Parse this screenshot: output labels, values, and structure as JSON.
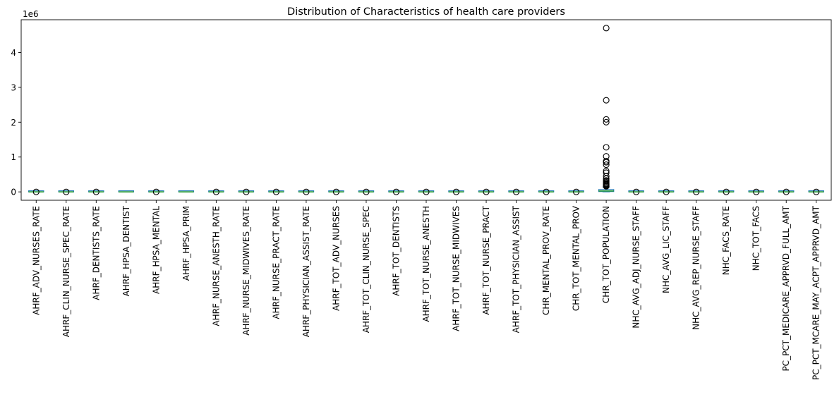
{
  "chart_data": {
    "type": "box",
    "title": "Distribution of Characteristics of health care providers",
    "xlabel": "",
    "ylabel": "",
    "y_scale_label": "1e6",
    "ylim": [
      -0.24,
      4.94
    ],
    "y_ticks": [
      0,
      1,
      2,
      3,
      4
    ],
    "y_tick_labels": [
      "0",
      "1",
      "2",
      "3",
      "4"
    ],
    "grid": false,
    "colors": {
      "box": "#1f77b4",
      "median": "#2ca02c",
      "flier": "#000000"
    },
    "categories": [
      "AHRF_ADV_NURSES_RATE",
      "AHRF_CLIN_NURSE_SPEC_RATE",
      "AHRF_DENTISTS_RATE",
      "AHRF_HPSA_DENTIST",
      "AHRF_HPSA_MENTAL",
      "AHRF_HPSA_PRIM",
      "AHRF_NURSE_ANESTH_RATE",
      "AHRF_NURSE_MIDWIVES_RATE",
      "AHRF_NURSE_PRACT_RATE",
      "AHRF_PHYSICIAN_ASSIST_RATE",
      "AHRF_TOT_ADV_NURSES",
      "AHRF_TOT_CLIN_NURSE_SPEC",
      "AHRF_TOT_DENTISTS",
      "AHRF_TOT_NURSE_ANESTH",
      "AHRF_TOT_NURSE_MIDWIVES",
      "AHRF_TOT_NURSE_PRACT",
      "AHRF_TOT_PHYSICIAN_ASSIST",
      "CHR_MENTAL_PROV_RATE",
      "CHR_TOT_MENTAL_PROV",
      "CHR_TOT_POPULATION",
      "NHC_AVG_ADJ_NURSE_STAFF",
      "NHC_AVG_LIC_STAFF",
      "NHC_AVG_REP_NURSE_STAFF",
      "NHC_FACS_RATE",
      "NHC_TOT_FACS",
      "PC_PCT_MEDICARE_APPRVD_FULL_AMT",
      "PC_PCT_MCARE_MAY_ACPT_APPRVD_AMT"
    ],
    "boxes": [
      {
        "q1": 0,
        "median": 0,
        "q3": 0,
        "whisker_low": 0,
        "whisker_high": 0,
        "has_fliers": true,
        "fliers": [
          0
        ]
      },
      {
        "q1": 0,
        "median": 0,
        "q3": 0,
        "whisker_low": 0,
        "whisker_high": 0,
        "has_fliers": true,
        "fliers": [
          0
        ]
      },
      {
        "q1": 0,
        "median": 0,
        "q3": 0,
        "whisker_low": 0,
        "whisker_high": 0,
        "has_fliers": true,
        "fliers": [
          0
        ]
      },
      {
        "q1": 0,
        "median": 0,
        "q3": 0,
        "whisker_low": 0,
        "whisker_high": 0,
        "has_fliers": false,
        "fliers": []
      },
      {
        "q1": 0,
        "median": 0,
        "q3": 0,
        "whisker_low": 0,
        "whisker_high": 0,
        "has_fliers": true,
        "fliers": [
          0
        ]
      },
      {
        "q1": 0,
        "median": 0,
        "q3": 0,
        "whisker_low": 0,
        "whisker_high": 0,
        "has_fliers": false,
        "fliers": []
      },
      {
        "q1": 0,
        "median": 0,
        "q3": 0,
        "whisker_low": 0,
        "whisker_high": 0,
        "has_fliers": true,
        "fliers": [
          0
        ]
      },
      {
        "q1": 0,
        "median": 0,
        "q3": 0,
        "whisker_low": 0,
        "whisker_high": 0,
        "has_fliers": true,
        "fliers": [
          0
        ]
      },
      {
        "q1": 0,
        "median": 0,
        "q3": 0,
        "whisker_low": 0,
        "whisker_high": 0,
        "has_fliers": true,
        "fliers": [
          0
        ]
      },
      {
        "q1": 0,
        "median": 0,
        "q3": 0,
        "whisker_low": 0,
        "whisker_high": 0,
        "has_fliers": true,
        "fliers": [
          0
        ]
      },
      {
        "q1": 0,
        "median": 0,
        "q3": 0,
        "whisker_low": 0,
        "whisker_high": 0,
        "has_fliers": true,
        "fliers": [
          0
        ]
      },
      {
        "q1": 0,
        "median": 0,
        "q3": 0,
        "whisker_low": 0,
        "whisker_high": 0,
        "has_fliers": true,
        "fliers": [
          0
        ]
      },
      {
        "q1": 0,
        "median": 0,
        "q3": 0,
        "whisker_low": 0,
        "whisker_high": 0,
        "has_fliers": true,
        "fliers": [
          0
        ]
      },
      {
        "q1": 0,
        "median": 0,
        "q3": 0,
        "whisker_low": 0,
        "whisker_high": 0,
        "has_fliers": true,
        "fliers": [
          0
        ]
      },
      {
        "q1": 0,
        "median": 0,
        "q3": 0,
        "whisker_low": 0,
        "whisker_high": 0,
        "has_fliers": true,
        "fliers": [
          0
        ]
      },
      {
        "q1": 0,
        "median": 0,
        "q3": 0,
        "whisker_low": 0,
        "whisker_high": 0,
        "has_fliers": true,
        "fliers": [
          0
        ]
      },
      {
        "q1": 0,
        "median": 0,
        "q3": 0,
        "whisker_low": 0,
        "whisker_high": 0,
        "has_fliers": true,
        "fliers": [
          0
        ]
      },
      {
        "q1": 0,
        "median": 0,
        "q3": 0,
        "whisker_low": 0,
        "whisker_high": 0,
        "has_fliers": true,
        "fliers": [
          0
        ]
      },
      {
        "q1": 0,
        "median": 0,
        "q3": 0,
        "whisker_low": 0,
        "whisker_high": 0,
        "has_fliers": true,
        "fliers": [
          0
        ]
      },
      {
        "q1": 0.01,
        "median": 0.025,
        "q3": 0.065,
        "whisker_low": 0,
        "whisker_high": 0.14,
        "has_fliers": true,
        "fliers": [
          0.16,
          0.18,
          0.2,
          0.22,
          0.24,
          0.27,
          0.3,
          0.33,
          0.38,
          0.45,
          0.55,
          0.6,
          0.78,
          0.85,
          0.88,
          1.02,
          1.28,
          2.0,
          2.08,
          2.63,
          4.7
        ]
      },
      {
        "q1": 0,
        "median": 0,
        "q3": 0,
        "whisker_low": 0,
        "whisker_high": 0,
        "has_fliers": true,
        "fliers": [
          0
        ]
      },
      {
        "q1": 0,
        "median": 0,
        "q3": 0,
        "whisker_low": 0,
        "whisker_high": 0,
        "has_fliers": true,
        "fliers": [
          0
        ]
      },
      {
        "q1": 0,
        "median": 0,
        "q3": 0,
        "whisker_low": 0,
        "whisker_high": 0,
        "has_fliers": true,
        "fliers": [
          0
        ]
      },
      {
        "q1": 0,
        "median": 0,
        "q3": 0,
        "whisker_low": 0,
        "whisker_high": 0,
        "has_fliers": true,
        "fliers": [
          0
        ]
      },
      {
        "q1": 0,
        "median": 0,
        "q3": 0,
        "whisker_low": 0,
        "whisker_high": 0,
        "has_fliers": true,
        "fliers": [
          0
        ]
      },
      {
        "q1": 0,
        "median": 0,
        "q3": 0,
        "whisker_low": 0,
        "whisker_high": 0,
        "has_fliers": true,
        "fliers": [
          0
        ]
      },
      {
        "q1": 0,
        "median": 0,
        "q3": 0,
        "whisker_low": 0,
        "whisker_high": 0,
        "has_fliers": true,
        "fliers": [
          0
        ]
      }
    ]
  }
}
